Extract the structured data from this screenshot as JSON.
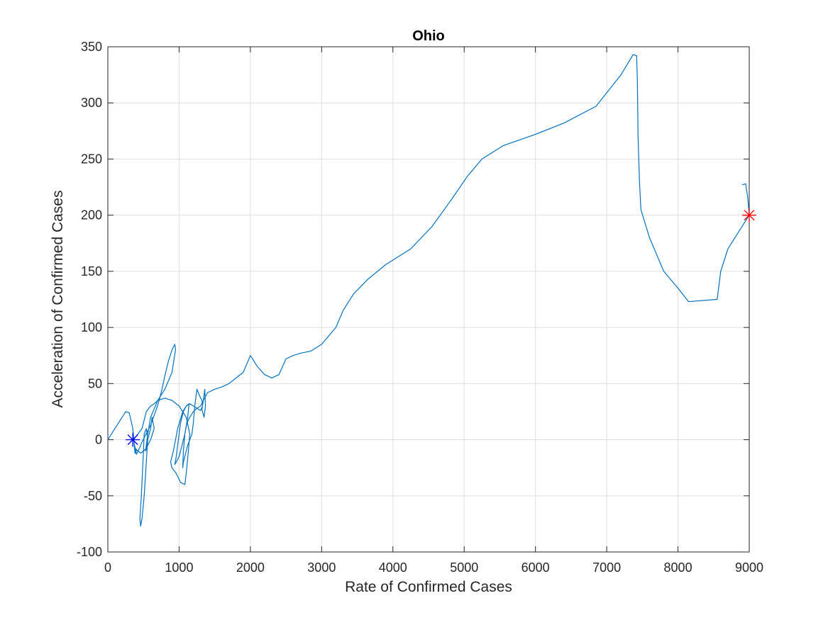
{
  "chart_data": {
    "type": "line",
    "title": "Ohio",
    "xlabel": "Rate of Confirmed Cases",
    "ylabel": "Acceleration of Confirmed Cases",
    "xlim": [
      0,
      9000
    ],
    "ylim": [
      -100,
      350
    ],
    "xticks": [
      0,
      1000,
      2000,
      3000,
      4000,
      5000,
      6000,
      7000,
      8000,
      9000
    ],
    "yticks": [
      -100,
      -50,
      0,
      50,
      100,
      150,
      200,
      250,
      300,
      350
    ],
    "grid": true,
    "series_color": "#0072BD",
    "series": [
      {
        "x": [
          0,
          100,
          200,
          250,
          300,
          350,
          380,
          400,
          390,
          420,
          460,
          500,
          540,
          560,
          540,
          510,
          500,
          470,
          450,
          460,
          480,
          510,
          540,
          560,
          600,
          620,
          650,
          600,
          560,
          530,
          560,
          600,
          700,
          800,
          900,
          950,
          940,
          900,
          850,
          800,
          760,
          720,
          680,
          640,
          600,
          560,
          520,
          480,
          440,
          400,
          360,
          420,
          480,
          540,
          600,
          650,
          700,
          800,
          900,
          1000,
          1100,
          1150,
          1130,
          1100,
          1080,
          1020,
          960,
          900,
          880,
          920,
          980,
          1050,
          1100,
          1140,
          1120,
          1080,
          1040,
          1000,
          960,
          940,
          960,
          990,
          1020,
          1060,
          1100,
          1150,
          1200,
          1250,
          1300,
          1330,
          1320,
          1280,
          1250,
          1220,
          1200,
          1180,
          1150,
          1120,
          1100,
          1080,
          1060,
          1050,
          1060,
          1080,
          1110,
          1150,
          1200,
          1250,
          1300,
          1340,
          1360,
          1370,
          1350,
          1320,
          1340,
          1400,
          1500,
          1600,
          1700,
          1800,
          1900,
          2000,
          2100,
          2200,
          2300,
          2400,
          2500,
          2600,
          2700,
          2850,
          3000,
          3200,
          3300,
          3450,
          3650,
          3900,
          4250,
          4550,
          4800,
          5050,
          5250,
          5550,
          6000,
          6400,
          6850,
          7200,
          7370,
          7420,
          7430,
          7440,
          7460,
          7480,
          7600,
          7800,
          8000,
          8150,
          8550,
          8600,
          8700,
          8850,
          9000,
          8980,
          8950,
          8900
        ],
        "y": [
          0,
          10,
          20,
          25,
          24,
          10,
          -12,
          -10,
          -8,
          -10,
          -12,
          -10,
          -8,
          0,
          10,
          5,
          -10,
          -50,
          -70,
          -77,
          -70,
          -50,
          -20,
          0,
          10,
          20,
          10,
          0,
          -5,
          -10,
          5,
          20,
          35,
          45,
          60,
          80,
          85,
          80,
          70,
          57,
          45,
          35,
          27,
          20,
          13,
          8,
          3,
          -2,
          -8,
          -13,
          0,
          5,
          10,
          25,
          30,
          32,
          35,
          37,
          35,
          30,
          20,
          5,
          -10,
          -30,
          -40,
          -38,
          -30,
          -25,
          -20,
          -10,
          10,
          25,
          30,
          32,
          20,
          5,
          -5,
          -15,
          -20,
          -22,
          -15,
          0,
          15,
          25,
          30,
          32,
          30,
          28,
          26,
          30,
          35,
          40,
          45,
          30,
          15,
          5,
          0,
          -5,
          -10,
          -15,
          -20,
          -25,
          -10,
          5,
          15,
          20,
          25,
          28,
          30,
          35,
          45,
          30,
          20,
          27,
          35,
          42,
          45,
          47,
          50,
          55,
          60,
          75,
          65,
          58,
          55,
          58,
          72,
          75,
          77,
          79,
          85,
          100,
          115,
          130,
          143,
          156,
          170,
          190,
          212,
          235,
          250,
          262,
          272,
          282,
          297,
          325,
          343,
          342,
          320,
          270,
          230,
          205,
          180,
          150,
          135,
          123,
          125,
          150,
          170,
          185,
          200,
          215,
          228,
          227
        ],
        "markers": [
          {
            "x": 350,
            "y": 0,
            "symbol": "asterisk",
            "color": "#0000FF"
          },
          {
            "x": 9000,
            "y": 200,
            "symbol": "asterisk",
            "color": "#FF0000"
          }
        ]
      }
    ]
  }
}
